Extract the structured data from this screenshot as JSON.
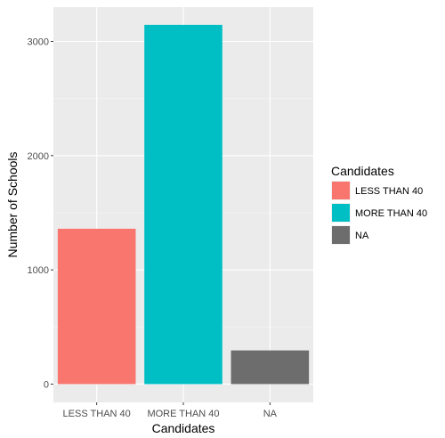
{
  "chart_data": {
    "type": "bar",
    "categories": [
      "LESS THAN 40",
      "MORE THAN 40",
      "NA"
    ],
    "values": [
      1360,
      3145,
      295
    ],
    "colors": [
      "#F8766D",
      "#00BFC4",
      "#6D6D6D"
    ],
    "xlabel": "Candidates",
    "ylabel": "Number of Schools",
    "ylim": [
      -160,
      3300
    ],
    "yticks": [
      0,
      1000,
      2000,
      3000
    ],
    "ytick_labels": [
      "0",
      "1000",
      "2000",
      "3000"
    ],
    "grid": true,
    "legend": {
      "title": "Candidates",
      "placement": "right",
      "items": [
        "LESS THAN 40",
        "MORE THAN 40",
        "NA"
      ]
    }
  }
}
